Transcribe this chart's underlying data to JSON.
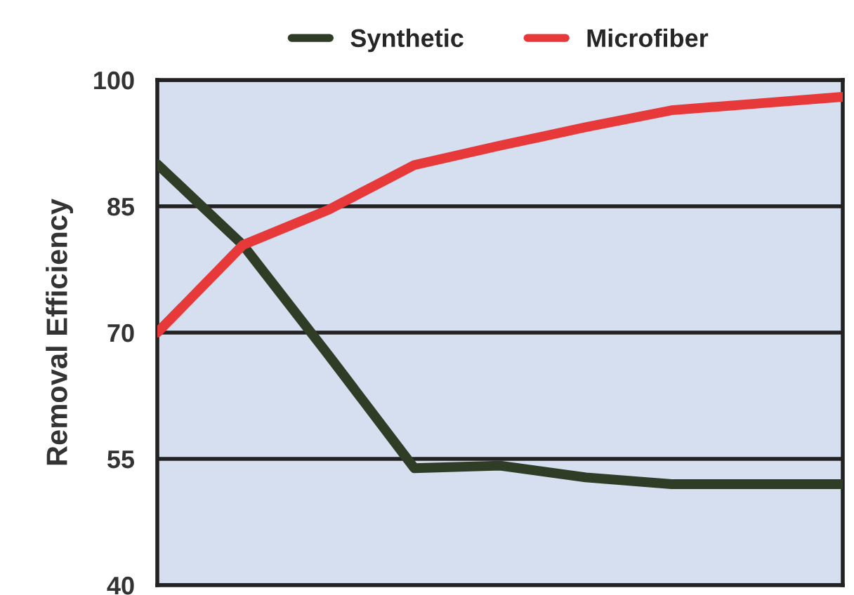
{
  "chart_data": {
    "type": "line",
    "ylabel": "Removal Efficiency",
    "categories": [
      null,
      null,
      null,
      null,
      null,
      null,
      null,
      null,
      null
    ],
    "series": [
      {
        "name": "Synthetic",
        "color": "#2f3d26",
        "values": [
          90,
          80.4,
          67.3,
          53.9,
          54.2,
          52.8,
          52,
          52,
          52
        ]
      },
      {
        "name": "Microfiber",
        "color": "#e8393a",
        "values": [
          70,
          80.4,
          84.6,
          89.9,
          92.2,
          94.4,
          96.4,
          97.2,
          98
        ]
      }
    ],
    "ylim": [
      40,
      100
    ],
    "yticks": [
      40,
      55,
      70,
      85,
      100
    ],
    "grid": "y",
    "legend": "top",
    "tick_labels": "y",
    "marker": "none",
    "line_style": "solid"
  }
}
